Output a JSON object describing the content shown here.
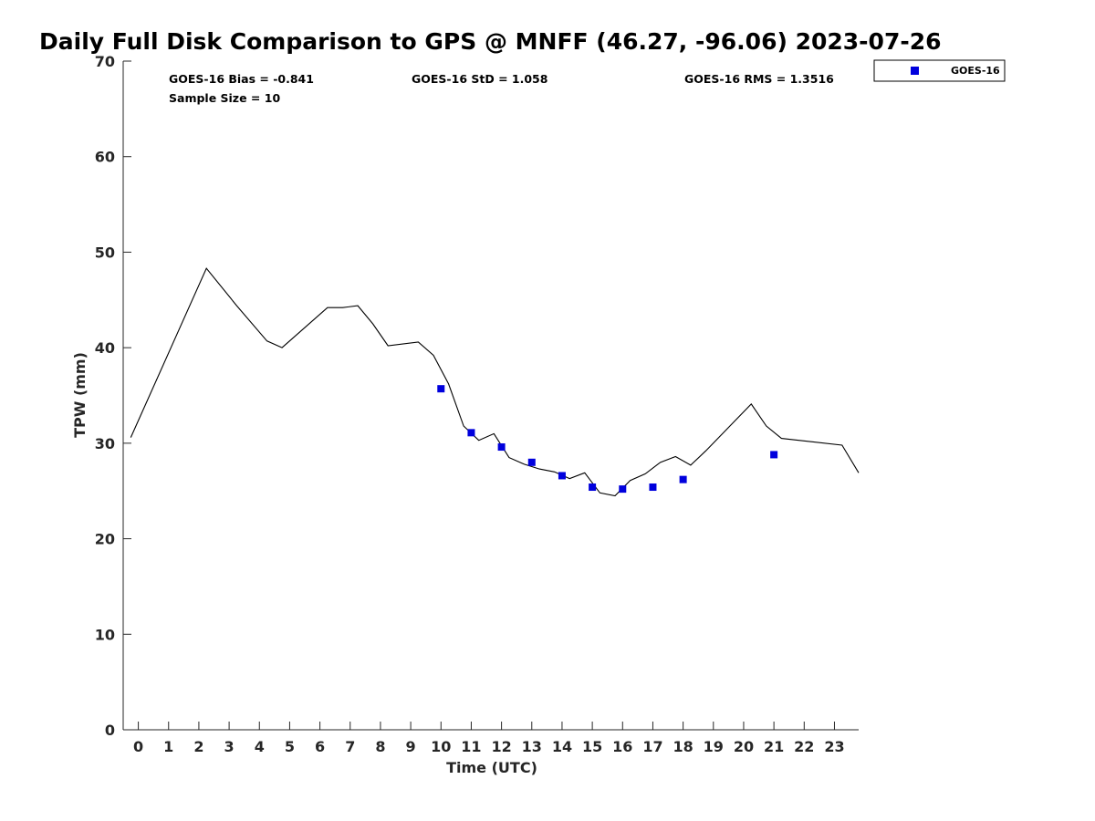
{
  "chart_data": {
    "type": "line",
    "title": "Daily Full Disk Comparison to GPS @ MNFF (46.27, -96.06) 2023-07-26",
    "xlabel": "Time (UTC)",
    "ylabel": "TPW (mm)",
    "xlim": [
      -0.5,
      23.8
    ],
    "ylim": [
      0,
      70
    ],
    "x_ticks": [
      0,
      1,
      2,
      3,
      4,
      5,
      6,
      7,
      8,
      9,
      10,
      11,
      12,
      13,
      14,
      15,
      16,
      17,
      18,
      19,
      20,
      21,
      22,
      23
    ],
    "x_tick_labels": [
      "0",
      "1",
      "2",
      "3",
      "4",
      "5",
      "6",
      "7",
      "8",
      "9",
      "10",
      "11",
      "12",
      "13",
      "14",
      "15",
      "16",
      "17",
      "18",
      "19",
      "20",
      "21",
      "22",
      "23"
    ],
    "y_ticks": [
      0,
      10,
      20,
      30,
      40,
      50,
      60,
      70
    ],
    "y_tick_labels": [
      "0",
      "10",
      "20",
      "30",
      "40",
      "50",
      "60",
      "70"
    ],
    "grid": false,
    "legend_position": "outside-top-right",
    "stats": {
      "bias": "GOES-16 Bias = -0.841",
      "std": "GOES-16 StD = 1.058",
      "rms": "GOES-16 RMS = 1.3516",
      "sample_size": "Sample Size = 10"
    },
    "series": [
      {
        "kind": "line",
        "color": "#000000",
        "points": [
          [
            -0.25,
            30.6
          ],
          [
            2.25,
            48.3
          ],
          [
            3.25,
            44.4
          ],
          [
            4.25,
            40.7
          ],
          [
            4.75,
            40.0
          ],
          [
            6.25,
            44.2
          ],
          [
            6.75,
            44.2
          ],
          [
            7.25,
            44.4
          ],
          [
            7.75,
            42.5
          ],
          [
            8.25,
            40.2
          ],
          [
            9.25,
            40.6
          ],
          [
            9.75,
            39.2
          ],
          [
            10.25,
            36.2
          ],
          [
            10.75,
            31.8
          ],
          [
            11.25,
            30.3
          ],
          [
            11.75,
            31.0
          ],
          [
            12.25,
            28.5
          ],
          [
            12.75,
            27.8
          ],
          [
            13.25,
            27.3
          ],
          [
            13.75,
            27.0
          ],
          [
            14.25,
            26.3
          ],
          [
            14.75,
            26.9
          ],
          [
            15.25,
            24.8
          ],
          [
            15.75,
            24.5
          ],
          [
            16.25,
            26.1
          ],
          [
            16.75,
            26.8
          ],
          [
            17.25,
            28.0
          ],
          [
            17.75,
            28.6
          ],
          [
            18.25,
            27.7
          ],
          [
            18.75,
            29.2
          ],
          [
            20.25,
            34.1
          ],
          [
            20.75,
            31.8
          ],
          [
            21.25,
            30.5
          ],
          [
            23.25,
            29.8
          ],
          [
            23.8,
            26.9
          ]
        ]
      },
      {
        "kind": "scatter",
        "name": "GOES-16",
        "color": "#0000dd",
        "points": [
          [
            10,
            35.7
          ],
          [
            11,
            31.1
          ],
          [
            12,
            29.6
          ],
          [
            13,
            28.0
          ],
          [
            14,
            26.6
          ],
          [
            15,
            25.4
          ],
          [
            16,
            25.2
          ],
          [
            17,
            25.4
          ],
          [
            18,
            26.2
          ],
          [
            21,
            28.8
          ]
        ]
      }
    ]
  }
}
